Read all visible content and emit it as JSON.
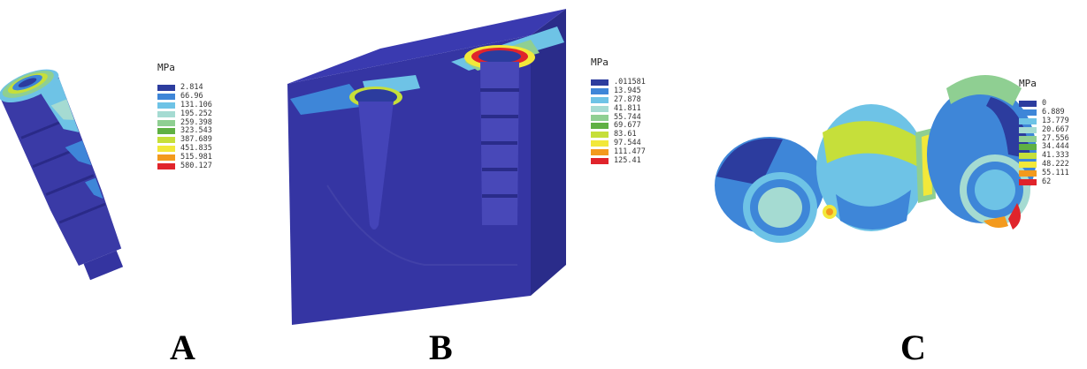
{
  "panels": [
    {
      "label": "A",
      "legend": {
        "unit": "MPa",
        "entries": [
          {
            "value": "2.814",
            "color": "#2c3c9e"
          },
          {
            "value": "66.96",
            "color": "#3e86d8"
          },
          {
            "value": "131.106",
            "color": "#6ec3e6"
          },
          {
            "value": "195.252",
            "color": "#a5dbd2"
          },
          {
            "value": "259.398",
            "color": "#8fcf92"
          },
          {
            "value": "323.543",
            "color": "#5fb043"
          },
          {
            "value": "387.689",
            "color": "#c6df3a"
          },
          {
            "value": "451.835",
            "color": "#f2e83a"
          },
          {
            "value": "515.981",
            "color": "#f39a1e"
          },
          {
            "value": "580.127",
            "color": "#e0242b"
          }
        ]
      }
    },
    {
      "label": "B",
      "legend": {
        "unit": "MPa",
        "entries": [
          {
            "value": ".011581",
            "color": "#2c3c9e"
          },
          {
            "value": "13.945",
            "color": "#3e86d8"
          },
          {
            "value": "27.878",
            "color": "#6ec3e6"
          },
          {
            "value": "41.811",
            "color": "#a5dbd2"
          },
          {
            "value": "55.744",
            "color": "#8fcf92"
          },
          {
            "value": "69.677",
            "color": "#5fb043"
          },
          {
            "value": "83.61",
            "color": "#c6df3a"
          },
          {
            "value": "97.544",
            "color": "#f2e83a"
          },
          {
            "value": "111.477",
            "color": "#f39a1e"
          },
          {
            "value": "125.41",
            "color": "#e0242b"
          }
        ]
      }
    },
    {
      "label": "C",
      "legend": {
        "unit": "MPa",
        "entries": [
          {
            "value": "0",
            "color": "#2c3c9e"
          },
          {
            "value": "6.889",
            "color": "#3e86d8"
          },
          {
            "value": "13.779",
            "color": "#6ec3e6"
          },
          {
            "value": "20.667",
            "color": "#a5dbd2"
          },
          {
            "value": "27.556",
            "color": "#8fcf92"
          },
          {
            "value": "34.444",
            "color": "#5fb043"
          },
          {
            "value": "41.333",
            "color": "#c6df3a"
          },
          {
            "value": "48.222",
            "color": "#f2e83a"
          },
          {
            "value": "55.111",
            "color": "#f39a1e"
          },
          {
            "value": "62",
            "color": "#e0242b"
          }
        ]
      }
    }
  ]
}
